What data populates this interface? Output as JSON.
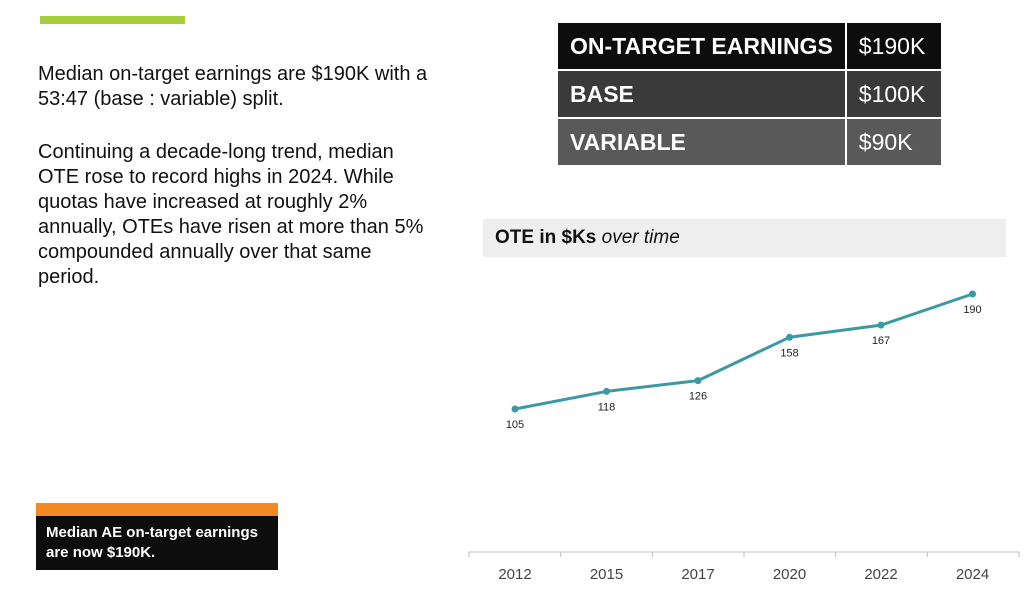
{
  "intro_text": "Median on-target earnings are $190K with a 53:47 (base : variable) split.",
  "trend_text": "Continuing a decade-long trend, median OTE rose to record highs in 2024. While quotas have increased at roughly 2% annually, OTEs have risen at more than 5% compounded annually over that same period.",
  "earnings_table": [
    {
      "label": "ON-TARGET EARNINGS",
      "value": "$190K"
    },
    {
      "label": "BASE",
      "value": "$100K"
    },
    {
      "label": "VARIABLE",
      "value": "$90K"
    }
  ],
  "callout": {
    "text": "Median AE on-target earnings are now $190K."
  },
  "colors": {
    "line": "#3a9aa3",
    "accent_green": "#a6ce39",
    "accent_orange": "#f28a21"
  },
  "chart_data": {
    "type": "line",
    "title": "OTE in $Ks",
    "subtitle": "over time",
    "categories": [
      "2012",
      "2015",
      "2017",
      "2020",
      "2022",
      "2024"
    ],
    "values": [
      105,
      118,
      126,
      158,
      167,
      190
    ],
    "data_labels": [
      "105",
      "118",
      "126",
      "158",
      "167",
      "190"
    ],
    "ylim": [
      80,
      200
    ],
    "grid": false,
    "legend": "none"
  }
}
